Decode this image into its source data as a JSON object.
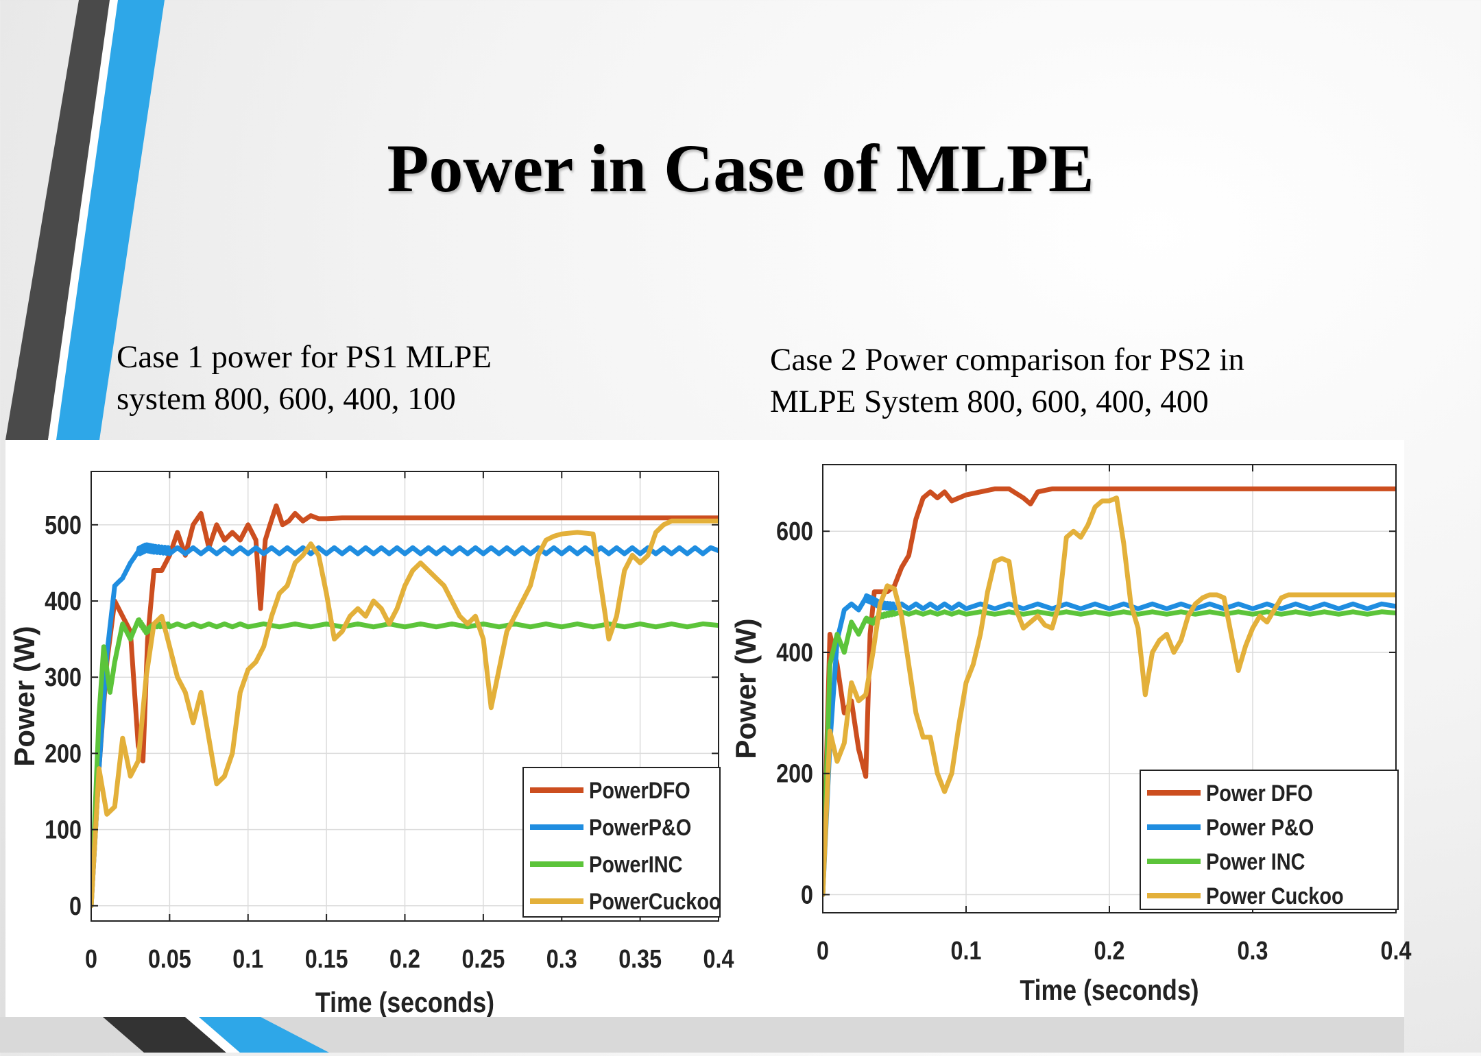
{
  "slide": {
    "title": "Power in Case of MLPE",
    "caption_left_line1": "Case 1 power  for PS1 MLPE",
    "caption_left_line2": "system 800, 600, 400, 100",
    "caption_right_line1": "Case 2 Power comparison for PS2 in",
    "caption_right_line2": "MLPE System 800, 600, 400, 400",
    "colors": {
      "accent_blue": "#2ea7e8",
      "accent_dark": "#4a4a4a"
    }
  },
  "chart_data": [
    {
      "type": "line",
      "title": "",
      "xlabel": "Time (seconds)",
      "ylabel": "Power (W)",
      "xlim": [
        0,
        0.4
      ],
      "ylim": [
        -20,
        570
      ],
      "xticks": [
        0,
        0.05,
        0.1,
        0.15,
        0.2,
        0.25,
        0.3,
        0.35,
        0.4
      ],
      "xtick_labels": [
        "0",
        "0.05",
        "0.1",
        "0.15",
        "0.2",
        "0.25",
        "0.3",
        "0.35",
        "0.4"
      ],
      "yticks": [
        0,
        100,
        200,
        300,
        400,
        500
      ],
      "ytick_labels": [
        "0",
        "100",
        "200",
        "300",
        "400",
        "500"
      ],
      "grid": true,
      "legend_position": "bottom-right",
      "series": [
        {
          "name": "PowerDFO",
          "color": "#cc4e1f",
          "noise": 0,
          "x": [
            0,
            0.005,
            0.01,
            0.015,
            0.02,
            0.025,
            0.03,
            0.033,
            0.036,
            0.04,
            0.045,
            0.05,
            0.055,
            0.06,
            0.065,
            0.07,
            0.075,
            0.08,
            0.085,
            0.09,
            0.095,
            0.1,
            0.105,
            0.108,
            0.111,
            0.114,
            0.118,
            0.122,
            0.126,
            0.13,
            0.135,
            0.14,
            0.145,
            0.15,
            0.16,
            0.2,
            0.25,
            0.3,
            0.35,
            0.4
          ],
          "y": [
            0,
            180,
            320,
            400,
            380,
            360,
            210,
            190,
            350,
            440,
            440,
            460,
            490,
            460,
            500,
            515,
            470,
            500,
            480,
            490,
            480,
            500,
            480,
            390,
            480,
            500,
            525,
            500,
            505,
            515,
            505,
            512,
            508,
            508,
            509,
            509,
            509,
            509,
            509,
            509
          ]
        },
        {
          "name": "PowerP&O",
          "color": "#1f8de0",
          "noise": 4,
          "x": [
            0,
            0.005,
            0.01,
            0.015,
            0.02,
            0.025,
            0.03,
            0.035,
            0.04,
            0.05,
            0.1,
            0.15,
            0.2,
            0.25,
            0.3,
            0.35,
            0.4
          ],
          "y": [
            0,
            180,
            330,
            420,
            430,
            450,
            465,
            470,
            468,
            466,
            466,
            466,
            466,
            466,
            466,
            466,
            466
          ]
        },
        {
          "name": "PowerINC",
          "color": "#5cc43a",
          "noise": 2,
          "x": [
            0,
            0.005,
            0.008,
            0.012,
            0.015,
            0.02,
            0.025,
            0.03,
            0.035,
            0.04,
            0.05,
            0.1,
            0.2,
            0.3,
            0.4
          ],
          "y": [
            0,
            250,
            340,
            280,
            320,
            370,
            350,
            375,
            360,
            368,
            368,
            368,
            368,
            368,
            368
          ]
        },
        {
          "name": "PowerCuckoo",
          "color": "#e3b03a",
          "noise": 0,
          "x": [
            0,
            0.005,
            0.01,
            0.015,
            0.02,
            0.025,
            0.03,
            0.035,
            0.04,
            0.045,
            0.05,
            0.055,
            0.06,
            0.065,
            0.07,
            0.075,
            0.08,
            0.085,
            0.09,
            0.095,
            0.1,
            0.105,
            0.11,
            0.115,
            0.12,
            0.125,
            0.13,
            0.135,
            0.14,
            0.145,
            0.15,
            0.155,
            0.16,
            0.165,
            0.17,
            0.175,
            0.18,
            0.185,
            0.19,
            0.195,
            0.2,
            0.205,
            0.21,
            0.215,
            0.22,
            0.225,
            0.23,
            0.235,
            0.24,
            0.245,
            0.25,
            0.255,
            0.26,
            0.265,
            0.27,
            0.275,
            0.28,
            0.285,
            0.29,
            0.295,
            0.3,
            0.31,
            0.32,
            0.325,
            0.33,
            0.335,
            0.34,
            0.345,
            0.35,
            0.355,
            0.36,
            0.365,
            0.37,
            0.375,
            0.38,
            0.385,
            0.39,
            0.395,
            0.4
          ],
          "y": [
            0,
            180,
            120,
            130,
            220,
            170,
            190,
            300,
            370,
            380,
            340,
            300,
            280,
            240,
            280,
            220,
            160,
            170,
            200,
            280,
            310,
            320,
            340,
            380,
            410,
            420,
            450,
            460,
            475,
            460,
            410,
            350,
            360,
            380,
            390,
            380,
            400,
            390,
            370,
            390,
            420,
            440,
            450,
            440,
            430,
            420,
            400,
            380,
            370,
            380,
            350,
            260,
            310,
            360,
            380,
            400,
            420,
            460,
            480,
            485,
            488,
            490,
            488,
            420,
            350,
            380,
            440,
            460,
            450,
            460,
            490,
            500,
            505,
            505,
            505,
            505,
            505,
            505,
            505
          ]
        }
      ]
    },
    {
      "type": "line",
      "title": "",
      "xlabel": "Time (seconds)",
      "ylabel": "Power (W)",
      "xlim": [
        0,
        0.4
      ],
      "ylim": [
        -30,
        710
      ],
      "xticks": [
        0,
        0.1,
        0.2,
        0.3,
        0.4
      ],
      "xtick_labels": [
        "0",
        "0.1",
        "0.2",
        "0.3",
        "0.4"
      ],
      "yticks": [
        0,
        200,
        400,
        600
      ],
      "ytick_labels": [
        "0",
        "200",
        "400",
        "600"
      ],
      "grid": true,
      "legend_position": "bottom-right",
      "series": [
        {
          "name": "Power DFO",
          "color": "#cc4e1f",
          "noise": 0,
          "x": [
            0,
            0.005,
            0.01,
            0.015,
            0.02,
            0.025,
            0.03,
            0.033,
            0.036,
            0.04,
            0.045,
            0.05,
            0.055,
            0.06,
            0.065,
            0.07,
            0.075,
            0.08,
            0.085,
            0.09,
            0.1,
            0.11,
            0.12,
            0.13,
            0.14,
            0.145,
            0.15,
            0.16,
            0.2,
            0.25,
            0.3,
            0.35,
            0.4
          ],
          "y": [
            0,
            430,
            380,
            300,
            320,
            240,
            195,
            430,
            500,
            500,
            500,
            510,
            540,
            560,
            620,
            655,
            665,
            655,
            665,
            650,
            660,
            665,
            670,
            670,
            655,
            645,
            665,
            670,
            670,
            670,
            670,
            670,
            670
          ]
        },
        {
          "name": "Power P&O",
          "color": "#1f8de0",
          "noise": 4,
          "x": [
            0,
            0.005,
            0.01,
            0.015,
            0.02,
            0.025,
            0.03,
            0.035,
            0.04,
            0.05,
            0.1,
            0.2,
            0.3,
            0.4
          ],
          "y": [
            0,
            250,
            420,
            470,
            480,
            470,
            490,
            485,
            478,
            476,
            476,
            476,
            476,
            476
          ]
        },
        {
          "name": "Power INC",
          "color": "#5cc43a",
          "noise": 2,
          "x": [
            0,
            0.005,
            0.01,
            0.015,
            0.02,
            0.025,
            0.03,
            0.035,
            0.04,
            0.05,
            0.1,
            0.2,
            0.3,
            0.4
          ],
          "y": [
            0,
            380,
            430,
            400,
            450,
            430,
            455,
            450,
            460,
            465,
            465,
            465,
            465,
            465
          ]
        },
        {
          "name": "Power Cuckoo",
          "color": "#e3b03a",
          "noise": 0,
          "x": [
            0,
            0.005,
            0.01,
            0.015,
            0.02,
            0.025,
            0.03,
            0.035,
            0.04,
            0.045,
            0.05,
            0.055,
            0.06,
            0.065,
            0.07,
            0.075,
            0.08,
            0.085,
            0.09,
            0.095,
            0.1,
            0.105,
            0.11,
            0.115,
            0.12,
            0.125,
            0.13,
            0.135,
            0.14,
            0.145,
            0.15,
            0.155,
            0.16,
            0.165,
            0.17,
            0.175,
            0.18,
            0.185,
            0.19,
            0.195,
            0.2,
            0.205,
            0.21,
            0.215,
            0.22,
            0.225,
            0.23,
            0.235,
            0.24,
            0.245,
            0.25,
            0.255,
            0.26,
            0.265,
            0.27,
            0.275,
            0.28,
            0.285,
            0.29,
            0.295,
            0.3,
            0.305,
            0.31,
            0.315,
            0.32,
            0.325,
            0.33,
            0.335,
            0.34,
            0.345,
            0.35,
            0.355,
            0.36,
            0.365,
            0.37,
            0.375,
            0.38,
            0.385,
            0.39,
            0.395,
            0.4
          ],
          "y": [
            0,
            270,
            220,
            250,
            350,
            320,
            330,
            400,
            480,
            510,
            505,
            460,
            380,
            300,
            260,
            260,
            200,
            170,
            200,
            280,
            350,
            380,
            430,
            500,
            550,
            555,
            550,
            470,
            440,
            450,
            460,
            445,
            440,
            480,
            590,
            600,
            590,
            610,
            640,
            650,
            650,
            655,
            580,
            480,
            440,
            330,
            400,
            420,
            430,
            400,
            420,
            460,
            480,
            490,
            495,
            495,
            490,
            430,
            370,
            410,
            440,
            460,
            450,
            470,
            490,
            495,
            495,
            495,
            495,
            495,
            495,
            495,
            495,
            495,
            495,
            495,
            495,
            495,
            495,
            495,
            495
          ]
        }
      ]
    }
  ]
}
